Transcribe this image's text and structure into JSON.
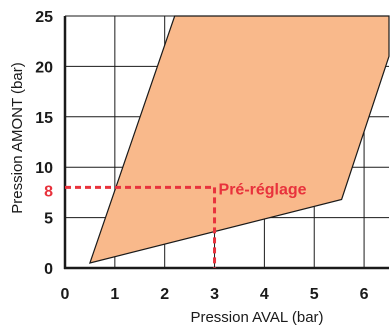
{
  "chart_data": {
    "type": "area",
    "xlabel": "Pression AVAL (bar)",
    "ylabel": "Pression AMONT (bar)",
    "xlim": [
      0,
      6.5
    ],
    "ylim": [
      0,
      25
    ],
    "x_ticks": [
      "0",
      "1",
      "2",
      "3",
      "4",
      "5",
      "6"
    ],
    "y_ticks": [
      "0",
      "5",
      "10",
      "15",
      "20",
      "25"
    ],
    "grid": true,
    "region": {
      "fill": "#f9b98b",
      "stroke": "#1a1a1a",
      "points": [
        [
          0.5,
          0.5
        ],
        [
          2.2,
          25
        ],
        [
          6.5,
          25
        ],
        [
          6.5,
          21
        ],
        [
          5.55,
          6.8
        ]
      ]
    },
    "annotation": {
      "text": "Pré-réglage",
      "x": 3,
      "y": 8,
      "y_label": "8",
      "color": "#e8323c"
    }
  }
}
